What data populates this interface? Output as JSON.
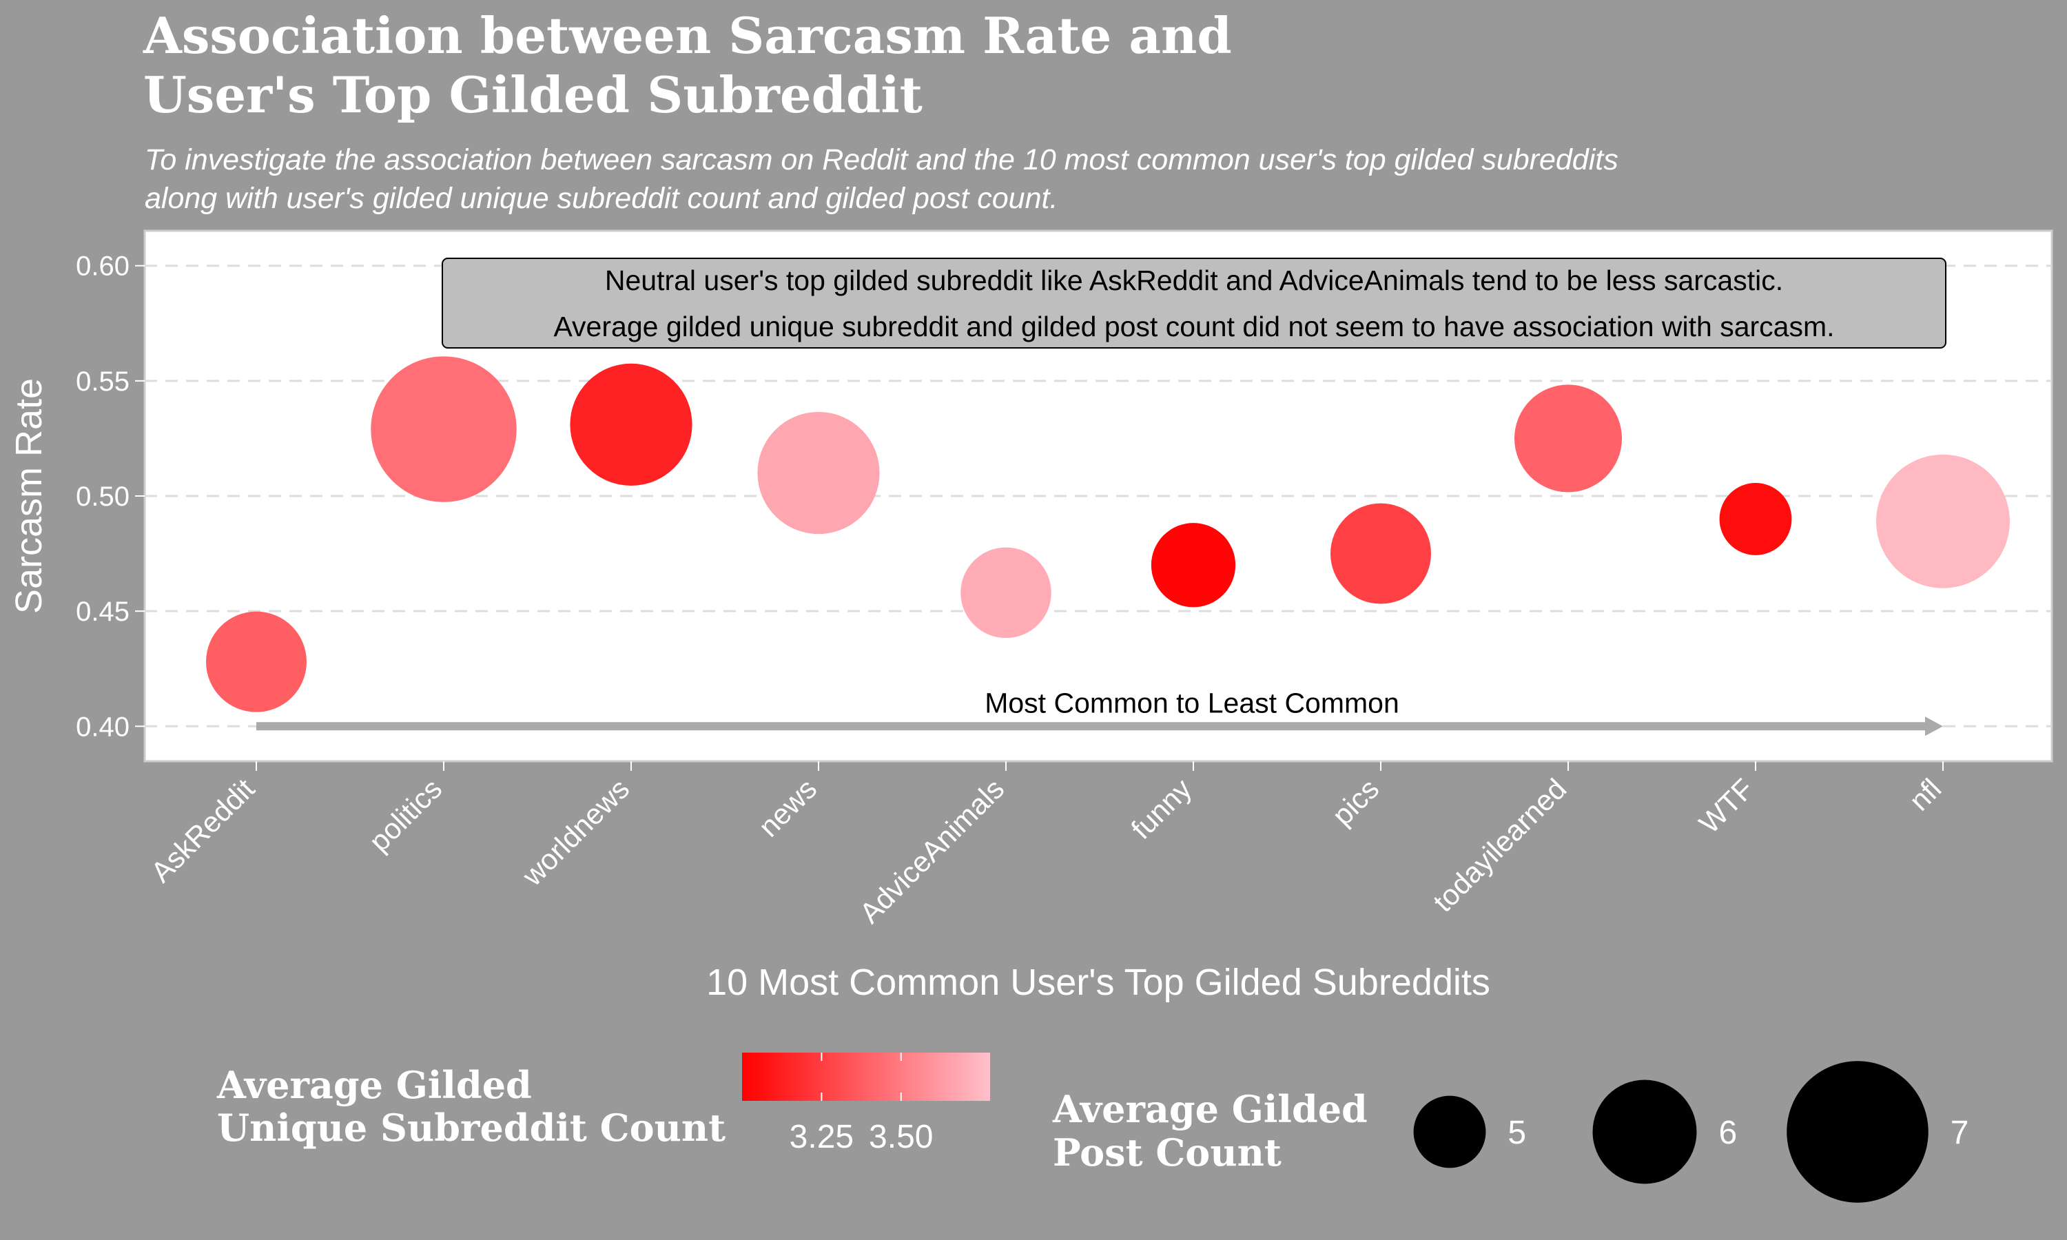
{
  "title": [
    "Association between Sarcasm Rate and",
    "User's Top Gilded Subreddit"
  ],
  "subtitle": [
    "To investigate the association between sarcasm on Reddit and the 10 most common user's top gilded subreddits",
    "along with user's gilded unique subreddit count and gilded post count."
  ],
  "chart_data": {
    "type": "scatter",
    "xlabel": "10 Most Common User's Top Gilded Subreddits",
    "ylabel": "Sarcasm Rate",
    "categories": [
      "AskReddit",
      "politics",
      "worldnews",
      "news",
      "AdviceAnimals",
      "funny",
      "pics",
      "todayilearned",
      "WTF",
      "nfl"
    ],
    "y": [
      0.428,
      0.529,
      0.531,
      0.51,
      0.458,
      0.47,
      0.475,
      0.525,
      0.49,
      0.489
    ],
    "color_value": [
      3.38,
      3.45,
      3.14,
      3.68,
      3.7,
      3.02,
      3.26,
      3.4,
      3.05,
      3.75
    ],
    "size_value": [
      5.9,
      7.1,
      6.5,
      6.5,
      5.6,
      5.4,
      5.9,
      6.1,
      5.0,
      6.8
    ],
    "ylim": [
      0.395,
      0.605
    ],
    "yticks": [
      0.4,
      0.45,
      0.5,
      0.55,
      0.6
    ],
    "ytick_labels": [
      "0.40",
      "0.45",
      "0.50",
      "0.55",
      "0.60"
    ],
    "grid": true,
    "colors": {
      "low": "#ff0000",
      "high": "#ffc0cb",
      "background": "#999999",
      "panel": "#ffffff",
      "grid": "#dddddd",
      "arrow": "#aaaaaa",
      "annotation_box": "#bebebe"
    },
    "color_range": [
      3.0,
      3.78
    ],
    "annotation": [
      "Neutral user's top gilded subreddit like AskReddit and AdviceAnimals tend to be less sarcastic.",
      "Average gilded unique subreddit and gilded post count did not seem to have association with sarcasm."
    ],
    "arrow_label": "Most Common to Least Common",
    "arrow_y": 0.4,
    "legend_position": "bottom",
    "color_legend": {
      "title": [
        "Average Gilded",
        "Unique Subreddit Count"
      ],
      "ticks": [
        3.25,
        3.5
      ],
      "tick_labels": [
        "3.25",
        "3.50"
      ]
    },
    "size_legend": {
      "title": [
        "Average Gilded",
        "Post Count"
      ],
      "values": [
        5,
        6,
        7
      ],
      "labels": [
        "5",
        "6",
        "7"
      ]
    }
  }
}
